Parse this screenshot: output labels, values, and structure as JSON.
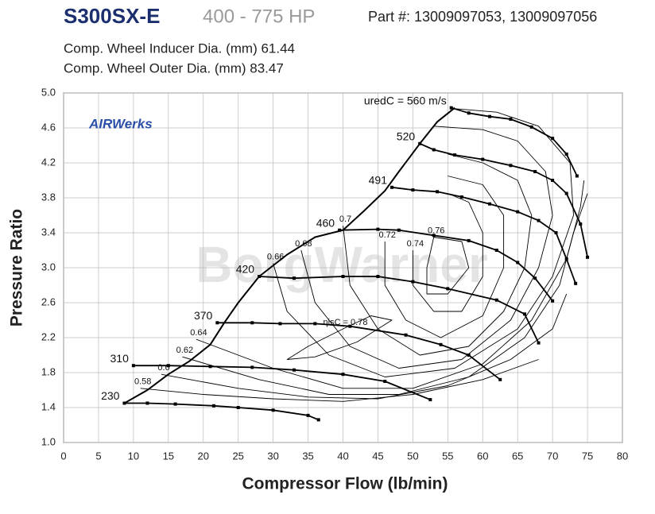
{
  "chart_data": {
    "type": "line",
    "title": "S300SX-E",
    "subtitle": "400 - 775 HP",
    "part_number": "Part #: 13009097053, 13009097056",
    "notes": [
      "Comp. Wheel Inducer Dia. (mm) 61.44",
      "Comp. Wheel Outer Dia. (mm) 83.47"
    ],
    "logo": "AIRWerks",
    "watermark": "BorgWarner",
    "xlabel": "Compressor Flow (lb/min)",
    "ylabel": "Pressure Ratio",
    "xlim": [
      0,
      80
    ],
    "ylim": [
      1,
      5
    ],
    "xticks": [
      0,
      5,
      10,
      15,
      20,
      25,
      30,
      35,
      40,
      45,
      50,
      55,
      60,
      65,
      70,
      75,
      80
    ],
    "yticks": [
      {
        "value": 1,
        "label": "1.0"
      },
      1.4,
      1.8,
      2.2,
      2.6,
      {
        "value": 3,
        "label": "3.0"
      },
      3.4,
      3.8,
      4.2,
      4.6,
      {
        "value": 5,
        "label": "5.0"
      }
    ],
    "grid": true,
    "speed_lines": [
      {
        "name": "230",
        "color": "#000000",
        "x": [
          8.7,
          12,
          16,
          21.5,
          25,
          30,
          35,
          36.5
        ],
        "y": [
          1.45,
          1.45,
          1.44,
          1.42,
          1.4,
          1.37,
          1.31,
          1.26
        ]
      },
      {
        "name": "310",
        "color": "#000000",
        "x": [
          10,
          15,
          21,
          27,
          33,
          40,
          46,
          52.5
        ],
        "y": [
          1.88,
          1.88,
          1.87,
          1.86,
          1.83,
          1.78,
          1.7,
          1.49
        ]
      },
      {
        "name": "370",
        "color": "#000000",
        "x": [
          22,
          27,
          31,
          36,
          41,
          49,
          54,
          58,
          62.5
        ],
        "y": [
          2.37,
          2.37,
          2.36,
          2.36,
          2.33,
          2.23,
          2.12,
          2.0,
          1.72
        ]
      },
      {
        "name": "420",
        "color": "#000000",
        "x": [
          28,
          33,
          40,
          45,
          50,
          55,
          62,
          66,
          68
        ],
        "y": [
          2.9,
          2.88,
          2.9,
          2.9,
          2.84,
          2.76,
          2.63,
          2.47,
          2.14
        ]
      },
      {
        "name": "460",
        "color": "#000000",
        "x": [
          39.5,
          45,
          48,
          53,
          58,
          62,
          65,
          67.5,
          70
        ],
        "y": [
          3.43,
          3.44,
          3.43,
          3.37,
          3.31,
          3.2,
          3.06,
          2.88,
          2.62
        ]
      },
      {
        "name": "491",
        "color": "#000000",
        "x": [
          47,
          50,
          53.5,
          57,
          61,
          65,
          68,
          70.5,
          72,
          73.3
        ],
        "y": [
          3.92,
          3.89,
          3.87,
          3.81,
          3.73,
          3.64,
          3.54,
          3.4,
          3.1,
          2.82
        ]
      },
      {
        "name": "520",
        "color": "#000000",
        "x": [
          51,
          53,
          56,
          60,
          64,
          67.5,
          70,
          72,
          74,
          75
        ],
        "y": [
          4.42,
          4.35,
          4.29,
          4.24,
          4.17,
          4.1,
          4.0,
          3.85,
          3.5,
          3.12
        ]
      },
      {
        "name": "uredC = 560 m/s",
        "color": "#000000",
        "x": [
          55.5,
          58,
          61,
          64,
          67,
          70,
          72,
          73.5
        ],
        "y": [
          4.83,
          4.77,
          4.73,
          4.7,
          4.61,
          4.48,
          4.3,
          4.05
        ]
      }
    ],
    "surge_line": {
      "color": "#000000",
      "x": [
        8.7,
        12,
        15,
        18,
        21,
        23,
        25,
        28,
        32,
        36,
        40,
        43,
        46,
        48,
        51,
        53.5,
        56
      ],
      "y": [
        1.45,
        1.6,
        1.78,
        1.93,
        2.12,
        2.37,
        2.6,
        2.9,
        3.15,
        3.35,
        3.43,
        3.65,
        3.88,
        4.1,
        4.42,
        4.67,
        4.83
      ]
    },
    "efficiency_lines": [
      {
        "name": "0.58",
        "color": "#000000",
        "x": [
          11,
          20,
          30,
          40,
          50,
          60,
          68
        ],
        "y": [
          1.62,
          1.55,
          1.5,
          1.47,
          1.55,
          1.72,
          1.95
        ]
      },
      {
        "name": "0.6",
        "color": "#000000",
        "x": [
          14,
          25,
          35,
          45,
          55,
          64,
          70,
          72
        ],
        "y": [
          1.78,
          1.62,
          1.52,
          1.5,
          1.65,
          1.95,
          2.3,
          2.7
        ]
      },
      {
        "name": "0.62",
        "color": "#000000",
        "x": [
          17,
          28,
          38,
          48,
          58,
          66,
          71,
          73,
          75
        ],
        "y": [
          1.98,
          1.72,
          1.55,
          1.55,
          1.75,
          2.2,
          2.8,
          3.4,
          3.85
        ]
      },
      {
        "name": "0.64",
        "color": "#000000",
        "x": [
          19,
          30,
          40,
          50,
          60,
          67,
          72,
          74,
          74.5
        ],
        "y": [
          2.18,
          1.85,
          1.62,
          1.62,
          1.9,
          2.4,
          3.1,
          3.7,
          4.0
        ]
      },
      {
        "name": "0.66",
        "color": "#000000",
        "x": [
          30,
          32,
          38,
          46,
          56,
          65,
          70,
          73,
          72.5,
          68,
          62,
          56
        ],
        "y": [
          3.05,
          2.5,
          2.0,
          1.75,
          1.85,
          2.3,
          2.9,
          3.6,
          4.2,
          4.62,
          4.78,
          4.82
        ]
      },
      {
        "name": "0.68",
        "color": "#000000",
        "x": [
          34,
          36,
          41,
          48,
          57,
          64,
          68,
          70,
          69,
          65,
          60,
          53
        ],
        "y": [
          3.2,
          2.6,
          2.1,
          1.85,
          1.95,
          2.4,
          3.0,
          3.6,
          4.1,
          4.45,
          4.58,
          4.62
        ]
      },
      {
        "name": "0.7",
        "color": "#000000",
        "x": [
          40,
          41,
          45,
          51,
          58,
          63,
          66,
          67,
          65,
          60,
          55
        ],
        "y": [
          3.48,
          2.8,
          2.3,
          2.0,
          2.1,
          2.5,
          3.0,
          3.6,
          4.0,
          4.2,
          4.3
        ]
      },
      {
        "name": "0.72",
        "color": "#000000",
        "x": [
          46,
          46,
          49,
          54,
          60,
          63,
          63,
          60,
          55
        ],
        "y": [
          3.3,
          2.8,
          2.4,
          2.2,
          2.45,
          3.0,
          3.6,
          3.95,
          4.05
        ]
      },
      {
        "name": "0.74",
        "color": "#000000",
        "x": [
          50,
          50,
          53,
          57,
          60,
          60,
          58,
          55
        ],
        "y": [
          3.2,
          2.8,
          2.5,
          2.5,
          2.9,
          3.4,
          3.75,
          3.85
        ]
      },
      {
        "name": "0.76",
        "color": "#000000",
        "x": [
          53,
          52,
          52,
          55,
          58,
          57,
          53
        ],
        "y": [
          3.35,
          3.0,
          2.7,
          2.7,
          3.0,
          3.3,
          3.35
        ]
      },
      {
        "name": "ηisC = 0.78",
        "color": "#000000",
        "x": [
          40,
          35,
          32,
          36,
          42,
          47,
          44,
          40
        ],
        "y": [
          2.3,
          2.1,
          1.95,
          1.98,
          2.15,
          2.4,
          2.45,
          2.3
        ]
      }
    ]
  }
}
